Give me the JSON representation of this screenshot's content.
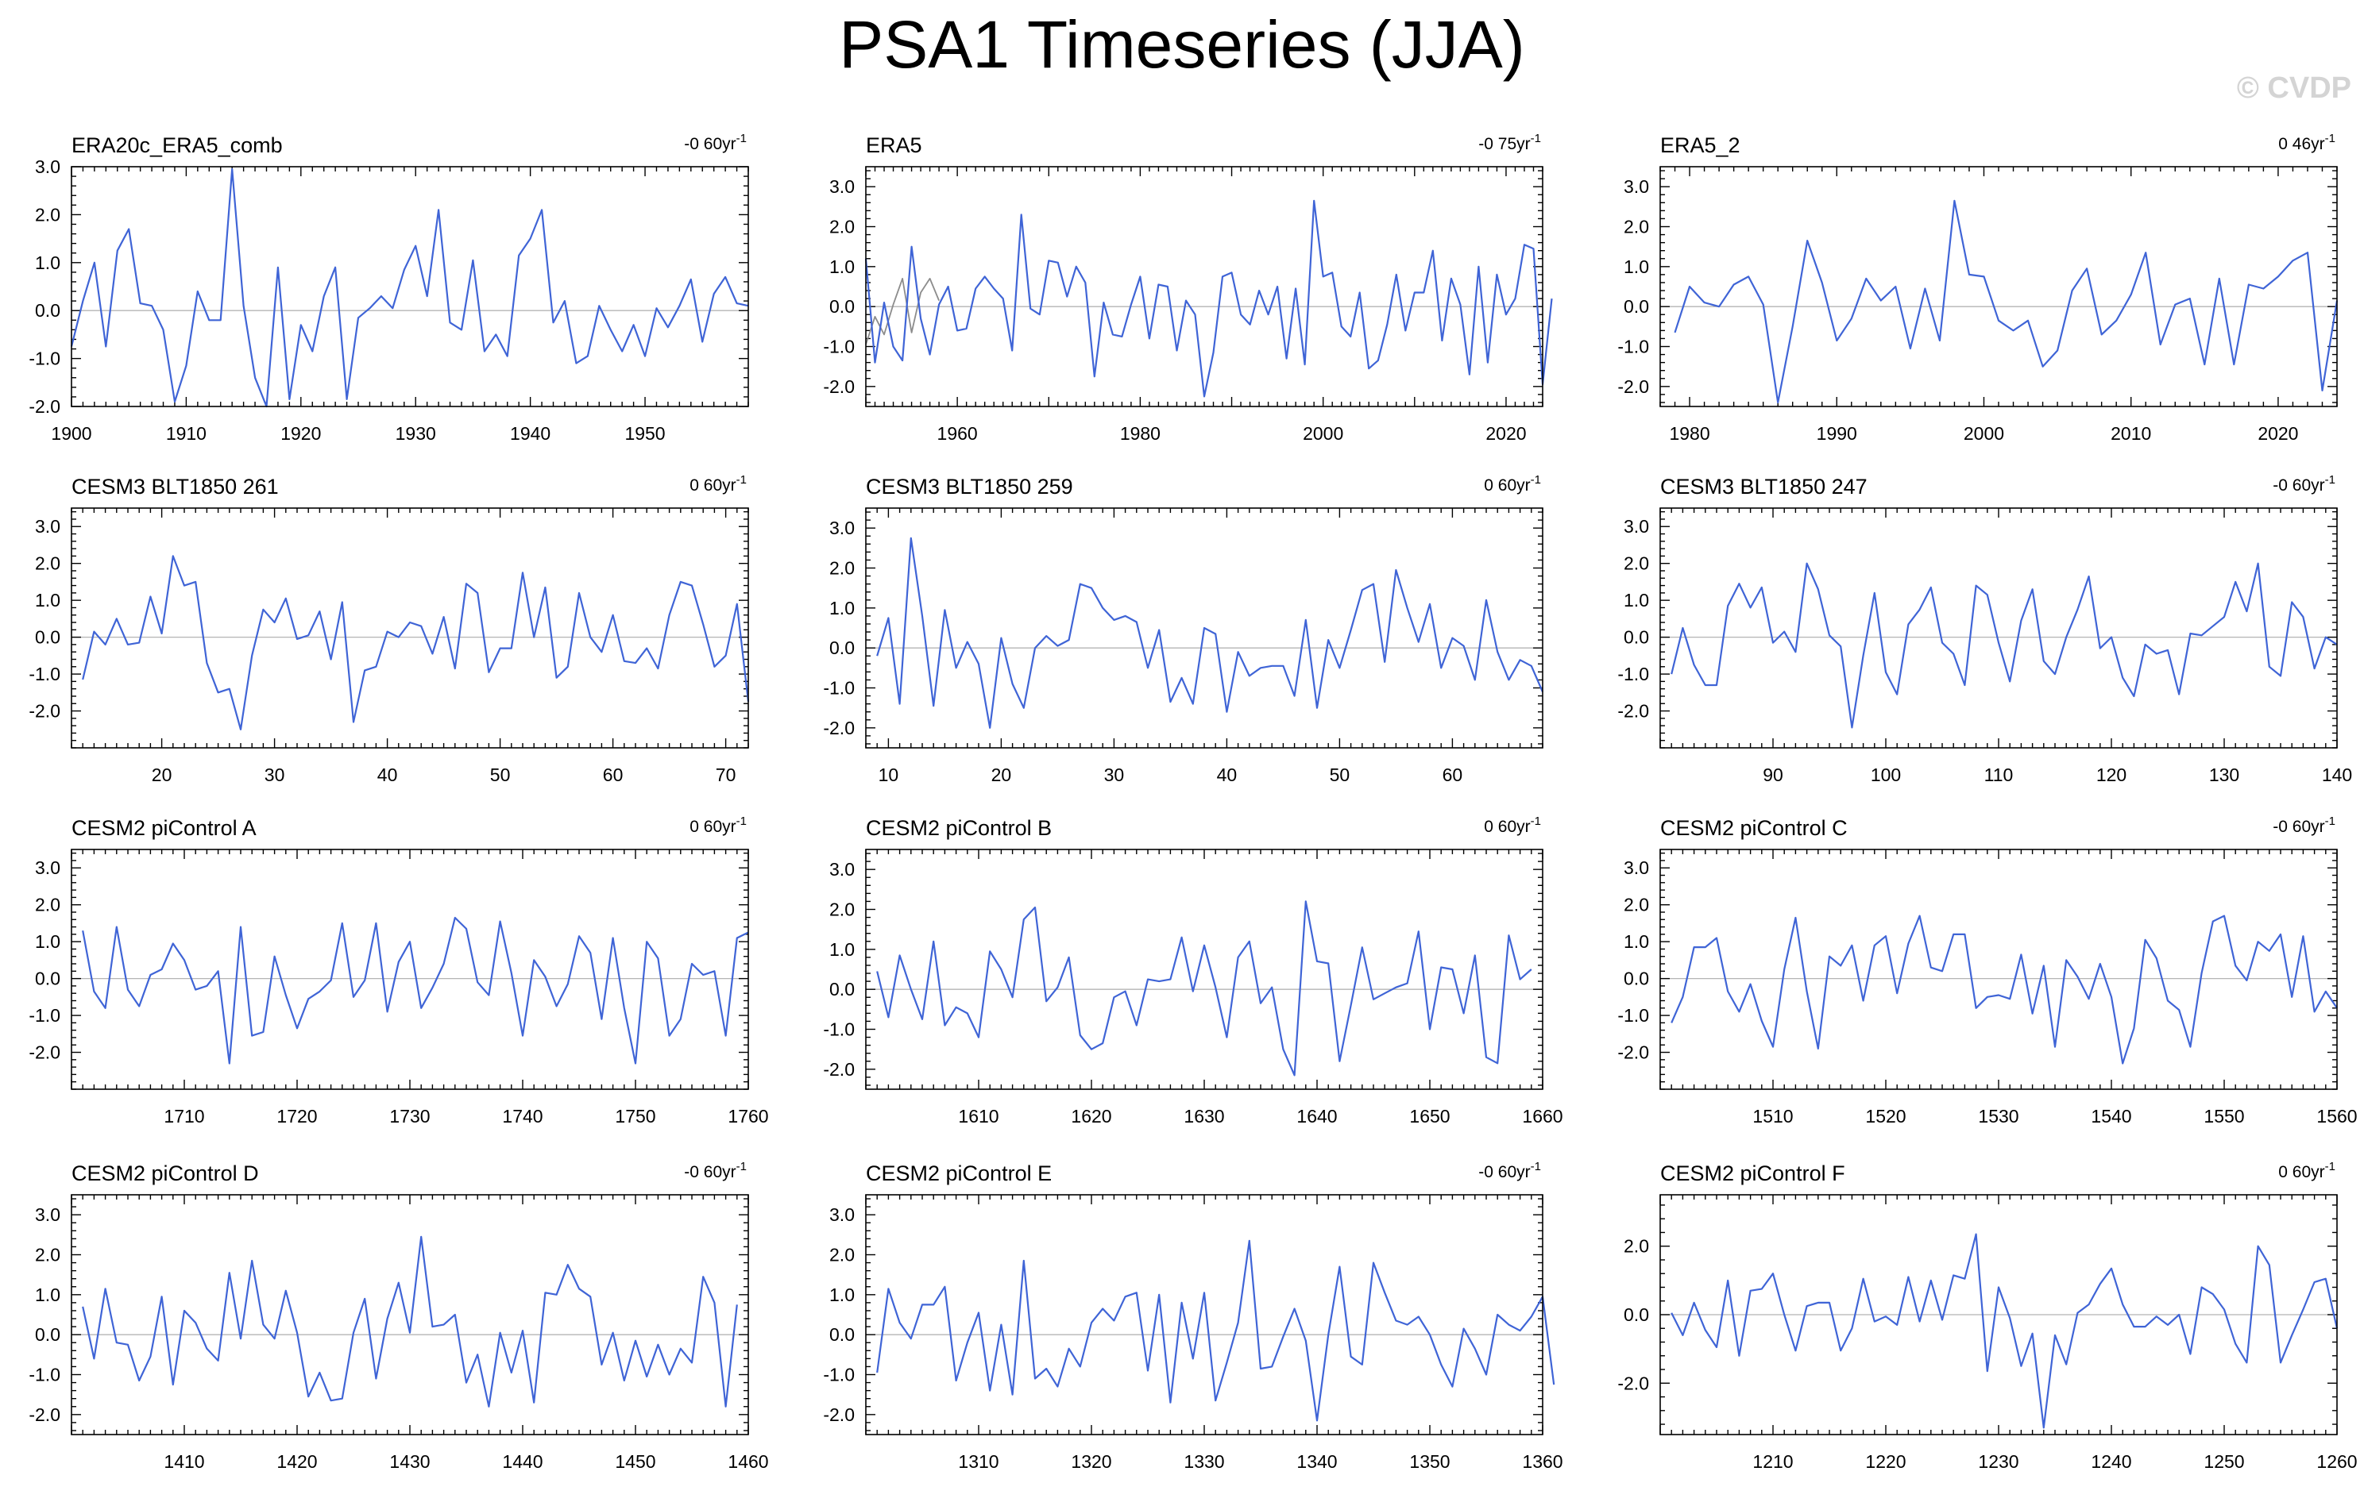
{
  "title": "PSA1 Timeseries (JJA)",
  "watermark": "© CVDP",
  "chart_data": [
    {
      "type": "line",
      "title": "ERA20c_ERA5_comb",
      "trend": "-0 60yr",
      "x_start": 1900,
      "xlim": [
        1900,
        1959
      ],
      "ylim": [
        -2.0,
        3.0
      ],
      "yticks": [
        -2.0,
        -1.0,
        0.0,
        1.0,
        2.0,
        3.0
      ],
      "xticks": [
        1900,
        1910,
        1920,
        1930,
        1940,
        1950
      ],
      "values": [
        -0.75,
        0.2,
        1.0,
        -0.75,
        1.25,
        1.7,
        0.15,
        0.1,
        -0.4,
        -1.9,
        -1.15,
        0.4,
        -0.2,
        -0.2,
        2.95,
        0.1,
        -1.4,
        -2.0,
        0.9,
        -1.85,
        -0.3,
        -0.85,
        0.3,
        0.9,
        -1.85,
        -0.15,
        0.05,
        0.3,
        0.05,
        0.85,
        1.35,
        0.3,
        2.1,
        -0.25,
        -0.4,
        1.05,
        -0.85,
        -0.5,
        -0.95,
        1.15,
        1.5,
        2.1,
        -0.25,
        0.2,
        -1.1,
        -0.95,
        0.1,
        -0.4,
        -0.85,
        -0.3,
        -0.95,
        0.05,
        -0.35,
        0.1,
        0.65,
        -0.65,
        0.35,
        0.7,
        0.15,
        0.1
      ]
    },
    {
      "type": "line",
      "title": "ERA5",
      "trend": "-0 75yr",
      "x_start": 1950,
      "xlim": [
        1950,
        2024
      ],
      "ylim": [
        -2.5,
        3.5
      ],
      "yticks": [
        -2.0,
        -1.0,
        0.0,
        1.0,
        2.0,
        3.0
      ],
      "xticks": [
        1960,
        1980,
        2000,
        2020
      ],
      "values": [
        1.2,
        -1.4,
        0.1,
        -1.0,
        -1.35,
        1.5,
        -0.3,
        -1.2,
        0.05,
        0.5,
        -0.6,
        -0.55,
        0.45,
        0.75,
        0.45,
        0.2,
        -1.1,
        2.3,
        -0.05,
        -0.2,
        1.15,
        1.1,
        0.25,
        1.0,
        0.6,
        -1.75,
        0.1,
        -0.7,
        -0.75,
        0.05,
        0.75,
        -0.8,
        0.55,
        0.5,
        -1.1,
        0.15,
        -0.2,
        -2.25,
        -1.15,
        0.75,
        0.85,
        -0.2,
        -0.45,
        0.4,
        -0.2,
        0.5,
        -1.3,
        0.45,
        -1.45,
        2.65,
        0.75,
        0.85,
        -0.5,
        -0.75,
        0.35,
        -1.55,
        -1.35,
        -0.45,
        0.8,
        -0.6,
        0.35,
        0.35,
        1.4,
        -0.85,
        0.7,
        0.05,
        -1.7,
        1.0,
        -1.4,
        0.8,
        -0.2,
        0.2,
        1.55,
        1.45,
        -1.95,
        0.2
      ],
      "series2_x_start": 1950,
      "series2": [
        -0.95,
        -0.25,
        -0.7,
        0.05,
        0.7,
        -0.65,
        0.35,
        0.7,
        0.15
      ]
    },
    {
      "type": "line",
      "title": "ERA5_2",
      "trend": "0 46yr",
      "x_start": 1979,
      "xlim": [
        1978,
        2024
      ],
      "ylim": [
        -2.5,
        3.5
      ],
      "yticks": [
        -2.0,
        -1.0,
        0.0,
        1.0,
        2.0,
        3.0
      ],
      "xticks": [
        1980,
        1990,
        2000,
        2010,
        2020
      ],
      "values": [
        -0.65,
        0.5,
        0.1,
        0.0,
        0.55,
        0.75,
        0.05,
        -2.4,
        -0.5,
        1.65,
        0.6,
        -0.85,
        -0.3,
        0.7,
        0.15,
        0.5,
        -1.05,
        0.45,
        -0.85,
        2.65,
        0.8,
        0.75,
        -0.35,
        -0.6,
        -0.35,
        -1.5,
        -1.1,
        0.4,
        0.95,
        -0.7,
        -0.35,
        0.3,
        1.35,
        -0.95,
        0.05,
        0.2,
        -1.45,
        0.7,
        -1.45,
        0.55,
        0.45,
        0.75,
        1.15,
        1.35,
        -2.1,
        0.15
      ]
    },
    {
      "type": "line",
      "title": "CESM3 BLT1850 261",
      "trend": "0 60yr",
      "x_start": 13,
      "xlim": [
        12,
        72
      ],
      "ylim": [
        -3.0,
        3.5
      ],
      "yticks": [
        -2.0,
        -1.0,
        0.0,
        1.0,
        2.0,
        3.0
      ],
      "xticks": [
        20,
        30,
        40,
        50,
        60,
        70
      ],
      "values": [
        -1.15,
        0.15,
        -0.2,
        0.5,
        -0.2,
        -0.15,
        1.1,
        0.1,
        2.2,
        1.4,
        1.5,
        -0.7,
        -1.5,
        -1.4,
        -2.5,
        -0.5,
        0.75,
        0.4,
        1.05,
        -0.05,
        0.05,
        0.7,
        -0.6,
        0.95,
        -2.3,
        -0.9,
        -0.8,
        0.15,
        0.0,
        0.4,
        0.3,
        -0.45,
        0.55,
        -0.85,
        1.45,
        1.2,
        -0.95,
        -0.3,
        -0.3,
        1.75,
        0.0,
        1.35,
        -1.1,
        -0.8,
        1.2,
        0.0,
        -0.4,
        0.6,
        -0.65,
        -0.7,
        -0.3,
        -0.85,
        0.6,
        1.5,
        1.4,
        0.35,
        -0.8,
        -0.5,
        0.9,
        -1.75
      ]
    },
    {
      "type": "line",
      "title": "CESM3 BLT1850 259",
      "trend": "0 60yr",
      "x_start": 9,
      "xlim": [
        8,
        68
      ],
      "ylim": [
        -2.5,
        3.5
      ],
      "yticks": [
        -2.0,
        -1.0,
        0.0,
        1.0,
        2.0,
        3.0
      ],
      "xticks": [
        10,
        20,
        30,
        40,
        50,
        60
      ],
      "values": [
        -0.2,
        0.75,
        -1.4,
        2.75,
        0.8,
        -1.45,
        0.95,
        -0.5,
        0.15,
        -0.4,
        -2.0,
        0.25,
        -0.9,
        -1.5,
        0.0,
        0.3,
        0.05,
        0.2,
        1.6,
        1.5,
        1.0,
        0.7,
        0.8,
        0.65,
        -0.5,
        0.45,
        -1.35,
        -0.75,
        -1.4,
        0.5,
        0.35,
        -1.6,
        -0.1,
        -0.7,
        -0.5,
        -0.45,
        -0.45,
        -1.2,
        0.7,
        -1.5,
        0.2,
        -0.5,
        0.45,
        1.45,
        1.6,
        -0.35,
        1.95,
        1.0,
        0.15,
        1.1,
        -0.5,
        0.25,
        0.05,
        -0.8,
        1.2,
        -0.1,
        -0.8,
        -0.3,
        -0.45,
        -1.1
      ]
    },
    {
      "type": "line",
      "title": "CESM3 BLT1850 247",
      "trend": "-0 60yr",
      "x_start": 81,
      "xlim": [
        80,
        140
      ],
      "ylim": [
        -3.0,
        3.5
      ],
      "yticks": [
        -2.0,
        -1.0,
        0.0,
        1.0,
        2.0,
        3.0
      ],
      "xticks": [
        90,
        100,
        110,
        120,
        130,
        140
      ],
      "values": [
        -1.0,
        0.25,
        -0.75,
        -1.3,
        -1.3,
        0.85,
        1.45,
        0.8,
        1.35,
        -0.15,
        0.15,
        -0.4,
        2.0,
        1.3,
        0.05,
        -0.25,
        -2.45,
        -0.5,
        1.2,
        -0.95,
        -1.55,
        0.35,
        0.75,
        1.35,
        -0.15,
        -0.45,
        -1.3,
        1.4,
        1.15,
        -0.15,
        -1.2,
        0.45,
        1.3,
        -0.65,
        -1.0,
        0.0,
        0.75,
        1.65,
        -0.3,
        0.0,
        -1.1,
        -1.6,
        -0.2,
        -0.45,
        -0.35,
        -1.55,
        0.1,
        0.05,
        0.3,
        0.55,
        1.5,
        0.7,
        2.0,
        -0.8,
        -1.05,
        0.95,
        0.55,
        -0.85,
        0.0,
        -0.2
      ]
    },
    {
      "type": "line",
      "title": "CESM2 piControl A",
      "trend": "0 60yr",
      "x_start": 1701,
      "xlim": [
        1700,
        1760
      ],
      "ylim": [
        -3.0,
        3.5
      ],
      "yticks": [
        -2.0,
        -1.0,
        0.0,
        1.0,
        2.0,
        3.0
      ],
      "xticks": [
        1710,
        1720,
        1730,
        1740,
        1750,
        1760
      ],
      "values": [
        1.3,
        -0.35,
        -0.8,
        1.4,
        -0.3,
        -0.75,
        0.1,
        0.25,
        0.95,
        0.5,
        -0.3,
        -0.2,
        0.2,
        -2.3,
        1.4,
        -1.55,
        -1.45,
        0.6,
        -0.45,
        -1.35,
        -0.55,
        -0.35,
        -0.05,
        1.5,
        -0.5,
        -0.05,
        1.5,
        -0.9,
        0.45,
        1.0,
        -0.8,
        -0.25,
        0.4,
        1.65,
        1.35,
        -0.1,
        -0.45,
        1.55,
        0.15,
        -1.55,
        0.5,
        0.05,
        -0.75,
        -0.15,
        1.15,
        0.7,
        -1.1,
        1.1,
        -0.8,
        -2.3,
        1.0,
        0.55,
        -1.55,
        -1.1,
        0.4,
        0.1,
        0.2,
        -1.55,
        1.1,
        1.25
      ]
    },
    {
      "type": "line",
      "title": "CESM2 piControl B",
      "trend": "0 60yr",
      "x_start": 1601,
      "xlim": [
        1600,
        1660
      ],
      "ylim": [
        -2.5,
        3.5
      ],
      "yticks": [
        -2.0,
        -1.0,
        0.0,
        1.0,
        2.0,
        3.0
      ],
      "xticks": [
        1610,
        1620,
        1630,
        1640,
        1650,
        1660
      ],
      "values": [
        0.45,
        -0.7,
        0.85,
        0.0,
        -0.75,
        1.2,
        -0.9,
        -0.45,
        -0.6,
        -1.2,
        0.95,
        0.5,
        -0.2,
        1.75,
        2.05,
        -0.3,
        0.05,
        0.8,
        -1.15,
        -1.5,
        -1.35,
        -0.2,
        -0.05,
        -0.9,
        0.25,
        0.2,
        0.25,
        1.3,
        -0.05,
        1.1,
        0.05,
        -1.2,
        0.8,
        1.2,
        -0.35,
        0.05,
        -1.5,
        -2.15,
        2.2,
        0.7,
        0.65,
        -1.8,
        -0.4,
        1.05,
        -0.25,
        -0.1,
        0.05,
        0.15,
        1.45,
        -1.0,
        0.55,
        0.5,
        -0.6,
        0.85,
        -1.7,
        -1.85,
        1.35,
        0.25,
        0.5
      ]
    },
    {
      "type": "line",
      "title": "CESM2 piControl C",
      "trend": "-0 60yr",
      "x_start": 1501,
      "xlim": [
        1500,
        1560
      ],
      "ylim": [
        -3.0,
        3.5
      ],
      "yticks": [
        -2.0,
        -1.0,
        0.0,
        1.0,
        2.0,
        3.0
      ],
      "xticks": [
        1510,
        1520,
        1530,
        1540,
        1550,
        1560
      ],
      "values": [
        -1.2,
        -0.5,
        0.85,
        0.85,
        1.1,
        -0.35,
        -0.9,
        -0.15,
        -1.15,
        -1.85,
        0.25,
        1.65,
        -0.35,
        -1.9,
        0.6,
        0.35,
        0.9,
        -0.6,
        0.9,
        1.15,
        -0.4,
        0.95,
        1.7,
        0.3,
        0.2,
        1.2,
        1.2,
        -0.8,
        -0.5,
        -0.45,
        -0.55,
        0.65,
        -0.95,
        0.35,
        -1.85,
        0.5,
        0.05,
        -0.55,
        0.4,
        -0.5,
        -2.3,
        -1.35,
        1.05,
        0.55,
        -0.6,
        -0.85,
        -1.85,
        0.15,
        1.55,
        1.7,
        0.35,
        -0.05,
        1.0,
        0.75,
        1.2,
        -0.5,
        1.15,
        -0.9,
        -0.35,
        -0.8
      ]
    },
    {
      "type": "line",
      "title": "CESM2 piControl D",
      "trend": "-0 60yr",
      "x_start": 1401,
      "xlim": [
        1400,
        1460
      ],
      "ylim": [
        -2.5,
        3.5
      ],
      "yticks": [
        -2.0,
        -1.0,
        0.0,
        1.0,
        2.0,
        3.0
      ],
      "xticks": [
        1410,
        1420,
        1430,
        1440,
        1450,
        1460
      ],
      "values": [
        0.7,
        -0.6,
        1.15,
        -0.2,
        -0.25,
        -1.15,
        -0.55,
        0.95,
        -1.25,
        0.6,
        0.3,
        -0.35,
        -0.65,
        1.55,
        -0.1,
        1.85,
        0.25,
        -0.1,
        1.1,
        0.05,
        -1.55,
        -0.95,
        -1.65,
        -1.6,
        0.05,
        0.9,
        -1.1,
        0.4,
        1.3,
        0.05,
        2.45,
        0.2,
        0.25,
        0.5,
        -1.2,
        -0.5,
        -1.8,
        0.05,
        -0.95,
        0.1,
        -1.7,
        1.05,
        1.0,
        1.75,
        1.15,
        0.95,
        -0.75,
        0.05,
        -1.15,
        -0.15,
        -1.05,
        -0.25,
        -1.0,
        -0.35,
        -0.7,
        1.45,
        0.8,
        -1.8,
        0.75
      ]
    },
    {
      "type": "line",
      "title": "CESM2 piControl E",
      "trend": "-0 60yr",
      "x_start": 1301,
      "xlim": [
        1300,
        1360
      ],
      "ylim": [
        -2.5,
        3.5
      ],
      "yticks": [
        -2.0,
        -1.0,
        0.0,
        1.0,
        2.0,
        3.0
      ],
      "xticks": [
        1310,
        1320,
        1330,
        1340,
        1350,
        1360
      ],
      "values": [
        -0.95,
        1.15,
        0.3,
        -0.1,
        0.75,
        0.75,
        1.2,
        -1.15,
        -0.2,
        0.55,
        -1.4,
        0.25,
        -1.5,
        1.85,
        -1.1,
        -0.85,
        -1.3,
        -0.35,
        -0.8,
        0.3,
        0.65,
        0.35,
        0.95,
        1.05,
        -0.9,
        1.0,
        -1.7,
        0.8,
        -0.6,
        1.05,
        -1.65,
        -0.7,
        0.3,
        2.35,
        -0.85,
        -0.8,
        -0.05,
        0.65,
        -0.15,
        -2.15,
        0.0,
        1.7,
        -0.55,
        -0.75,
        1.8,
        1.05,
        0.35,
        0.25,
        0.45,
        0.0,
        -0.75,
        -1.3,
        0.15,
        -0.35,
        -1.0,
        0.5,
        0.25,
        0.1,
        0.45,
        0.95,
        -1.25
      ]
    },
    {
      "type": "line",
      "title": "CESM2 piControl F",
      "trend": "0 60yr",
      "x_start": 1201,
      "xlim": [
        1200,
        1260
      ],
      "ylim": [
        -3.5,
        3.5
      ],
      "yticks": [
        -2.0,
        0.0,
        2.0
      ],
      "xticks": [
        1210,
        1220,
        1230,
        1240,
        1250,
        1260
      ],
      "values": [
        0.05,
        -0.6,
        0.35,
        -0.45,
        -0.95,
        1.0,
        -1.2,
        0.7,
        0.75,
        1.2,
        0.0,
        -1.05,
        0.25,
        0.35,
        0.35,
        -1.05,
        -0.4,
        1.05,
        -0.2,
        -0.05,
        -0.3,
        1.1,
        -0.2,
        1.0,
        -0.15,
        1.15,
        1.05,
        2.35,
        -1.65,
        0.8,
        -0.1,
        -1.5,
        -0.55,
        -3.3,
        -0.6,
        -1.45,
        0.05,
        0.3,
        0.9,
        1.35,
        0.3,
        -0.35,
        -0.35,
        -0.05,
        -0.3,
        0.0,
        -1.15,
        0.8,
        0.6,
        0.15,
        -0.85,
        -1.4,
        2.0,
        1.45,
        -1.4,
        -0.6,
        0.15,
        0.95,
        1.05,
        -0.4
      ]
    }
  ]
}
